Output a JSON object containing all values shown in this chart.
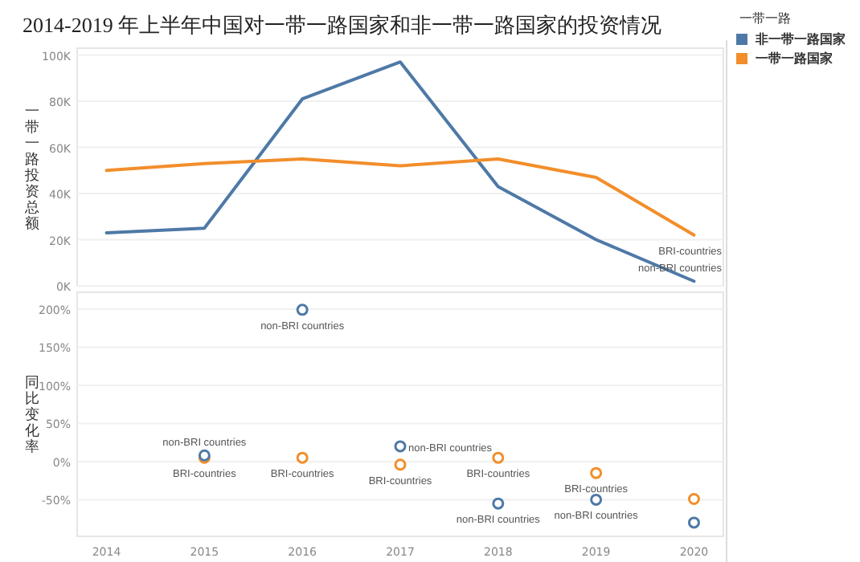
{
  "chart_data": [
    {
      "type": "line",
      "title": "2014-2019 年上半年中国对一带一路国家和非一带一路国家的投资情况",
      "ylabel": "一带一路投资总额",
      "legend_title": "一带一路",
      "legend": "right",
      "grid": "y",
      "tick_labels": "y",
      "marker": "none",
      "x": [
        2014,
        2015,
        2016,
        2017,
        2018,
        2019,
        2020
      ],
      "xlim": [
        2013.7,
        2020.3
      ],
      "xticks": [
        2014,
        2015,
        2016,
        2017,
        2018,
        2019,
        2020
      ],
      "ylim": [
        0,
        103
      ],
      "yticks": [
        {
          "value": 0,
          "label": "0K"
        },
        {
          "value": 20,
          "label": "20K"
        },
        {
          "value": 40,
          "label": "40K"
        },
        {
          "value": 60,
          "label": "60K"
        },
        {
          "value": 80,
          "label": "80K"
        },
        {
          "value": 100,
          "label": "100K"
        }
      ],
      "series": [
        {
          "name": "非一带一路国家",
          "color": "#4e79a7",
          "values": [
            23,
            25,
            81,
            97,
            43,
            20,
            2
          ]
        },
        {
          "name": "一带一路国家",
          "color": "#f28e2b",
          "values": [
            50,
            53,
            55,
            52,
            55,
            47,
            22
          ]
        }
      ],
      "annotations": [
        {
          "text": "BRI-countries",
          "x": 2020,
          "y": 22
        },
        {
          "text": "non-BRI countries",
          "x": 2020,
          "y": 2
        }
      ]
    },
    {
      "type": "scatter",
      "ylabel": "同比变化率",
      "grid": "y",
      "marker": "circle",
      "x": [
        2015,
        2016,
        2017,
        2018,
        2019,
        2020
      ],
      "xlim": [
        2013.7,
        2020.3
      ],
      "xticks": [
        2014,
        2015,
        2016,
        2017,
        2018,
        2019,
        2020
      ],
      "ylim": [
        -98,
        222
      ],
      "yticks": [
        {
          "value": -50,
          "label": "-50%"
        },
        {
          "value": 0,
          "label": "0%"
        },
        {
          "value": 50,
          "label": "50%"
        },
        {
          "value": 100,
          "label": "100%"
        },
        {
          "value": 150,
          "label": "150%"
        },
        {
          "value": 200,
          "label": "200%"
        }
      ],
      "series": [
        {
          "color": "#4e79a7",
          "values": [
            8,
            199,
            20,
            -55,
            -50,
            -80
          ]
        },
        {
          "color": "#f28e2b",
          "values": [
            5,
            5,
            -4,
            5,
            -15,
            -49
          ]
        }
      ],
      "annotations": [
        {
          "text": "BRI-countries",
          "x": 2015,
          "y": 5
        },
        {
          "text": "non-BRI countries",
          "x": 2015,
          "y": 8
        },
        {
          "text": "non-BRI countries",
          "x": 2016,
          "y": 199
        },
        {
          "text": "BRI-countries",
          "x": 2016,
          "y": 5
        },
        {
          "text": "BRI-countries",
          "x": 2017,
          "y": -4
        },
        {
          "text": "non-BRI countries",
          "x": 2017,
          "y": 20
        },
        {
          "text": "BRI-countries",
          "x": 2018,
          "y": 5
        },
        {
          "text": "non-BRI countries",
          "x": 2018,
          "y": -55
        },
        {
          "text": "BRI-countries",
          "x": 2019,
          "y": -15
        },
        {
          "text": "non-BRI countries",
          "x": 2019,
          "y": -50
        }
      ]
    }
  ]
}
